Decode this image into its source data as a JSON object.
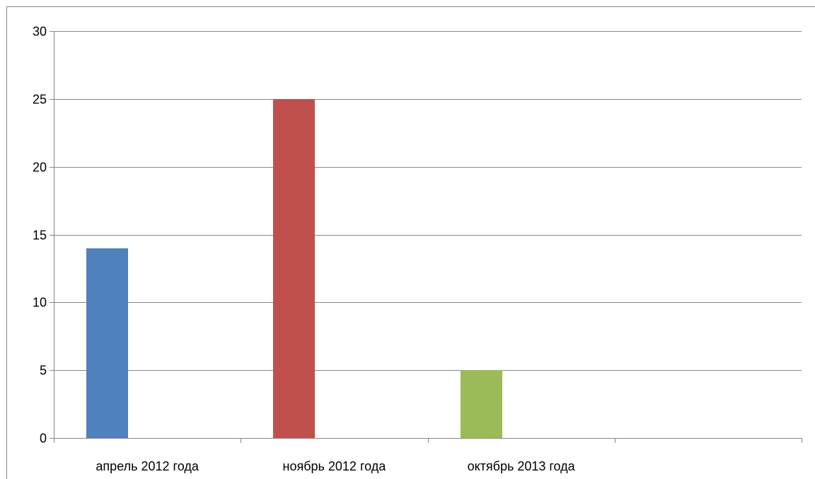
{
  "chart_data": {
    "type": "bar",
    "title": "",
    "xlabel": "",
    "ylabel": "",
    "categories": [
      "апрель 2012 года",
      "ноябрь 2012 года",
      "октябрь 2013 года",
      ""
    ],
    "values": [
      14,
      25,
      5,
      null
    ],
    "colors": [
      "#4f81bd",
      "#c0504d",
      "#9bbb59"
    ],
    "ylim": [
      0,
      30
    ],
    "yticks": [
      0,
      5,
      10,
      15,
      20,
      25,
      30
    ],
    "grid": true,
    "legend": "none"
  }
}
